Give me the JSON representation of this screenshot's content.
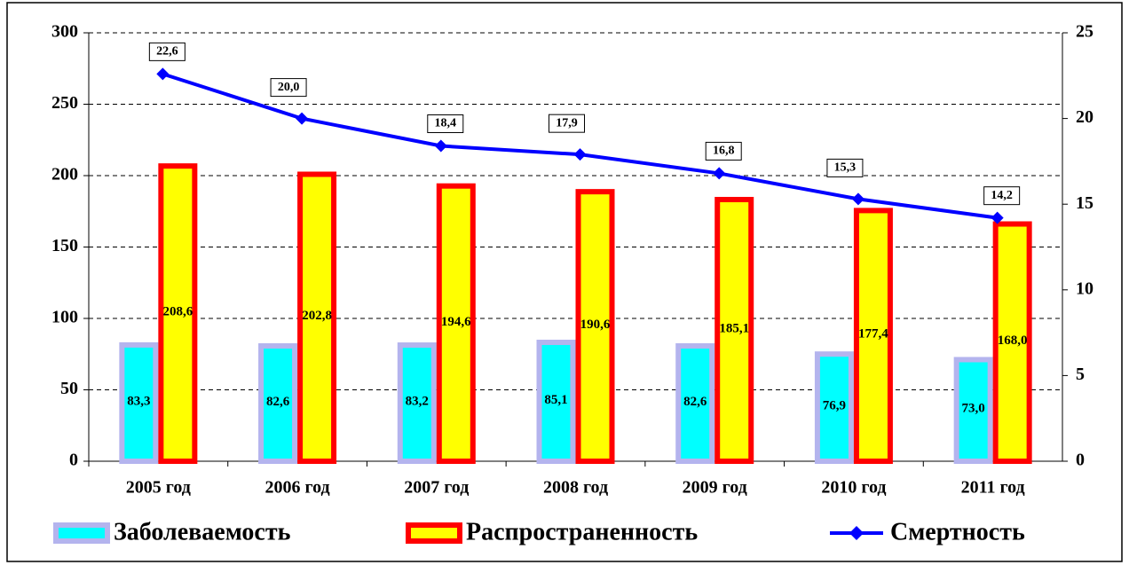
{
  "chart_data": {
    "type": "bar",
    "categories": [
      "2005 год",
      "2006 год",
      "2007 год",
      "2008 год",
      "2009 год",
      "2010 год",
      "2011 год"
    ],
    "series": [
      {
        "name": "Заболеваемость",
        "color": "#00ffff",
        "border_color": "#b4b4ee",
        "values": [
          83.3,
          82.6,
          83.2,
          85.1,
          82.6,
          76.9,
          73.0
        ],
        "value_labels": [
          "83,3",
          "82,6",
          "83,2",
          "85,1",
          "82,6",
          "76,9",
          "73,0"
        ]
      },
      {
        "name": "Распространенность",
        "color": "#ffff00",
        "border_color": "#ff0000",
        "values": [
          208.6,
          202.8,
          194.6,
          190.6,
          185.1,
          177.4,
          168.0
        ],
        "value_labels": [
          "208,6",
          "202,8",
          "194,6",
          "190,6",
          "185,1",
          "177,4",
          "168,0"
        ]
      },
      {
        "name": "Смертность",
        "type": "line",
        "axis": "y2",
        "color": "#0000ff",
        "values": [
          22.6,
          20.0,
          18.4,
          17.9,
          16.8,
          15.3,
          14.2
        ],
        "value_labels": [
          "22,6",
          "20,0",
          "18,4",
          "17,9",
          "16,8",
          "15,3",
          "14,2"
        ]
      }
    ],
    "ylim": [
      0,
      300
    ],
    "yticks": [
      0,
      50,
      100,
      150,
      200,
      250,
      300
    ],
    "y2lim": [
      0,
      25
    ],
    "y2ticks": [
      0,
      5,
      10,
      15,
      20,
      25
    ],
    "grid": true,
    "legend": "bottom"
  }
}
